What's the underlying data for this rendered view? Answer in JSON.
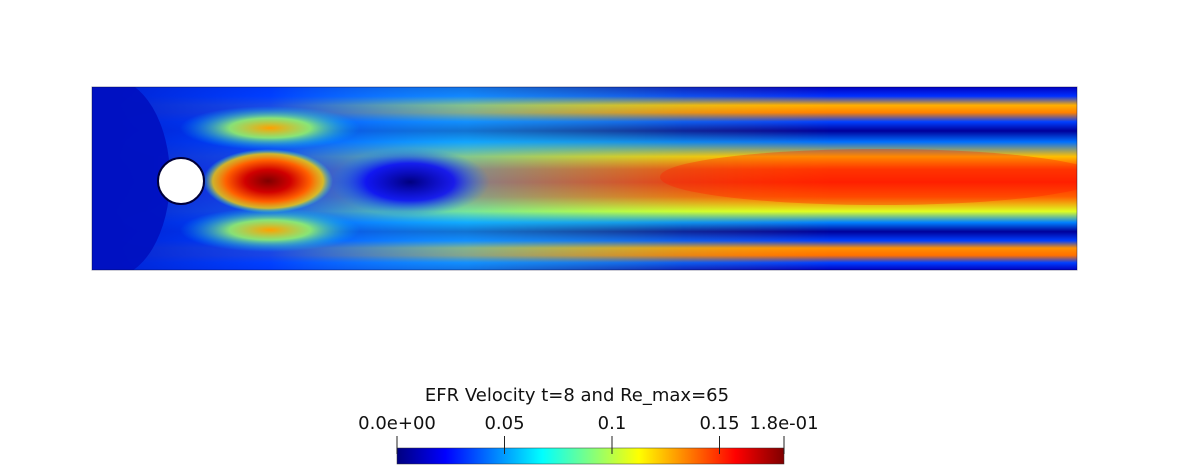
{
  "chart_data": {
    "type": "heatmap",
    "title": "EFR Velocity t=8   and Re_max=65",
    "colorbar": {
      "min_label": "0.0e+00",
      "max_label": "1.8e-01",
      "range": [
        0,
        0.18
      ],
      "ticks": [
        {
          "value": 0.05,
          "label": "0.05"
        },
        {
          "value": 0.1,
          "label": "0.1"
        },
        {
          "value": 0.15,
          "label": "0.15"
        }
      ],
      "colormap": [
        "#00007f",
        "#0000ff",
        "#0080ff",
        "#00ffff",
        "#80ff80",
        "#ffff00",
        "#ff8000",
        "#ff0000",
        "#7f0000"
      ]
    },
    "legend_position": "bottom-center",
    "field": {
      "description_values": "velocity magnitude on a channel with a circular cylinder obstacle",
      "core_wake_peak": 0.18,
      "far_field_center": 0.15,
      "far_field_side_jets": 0.14,
      "boundary_layer": 0.0
    }
  }
}
